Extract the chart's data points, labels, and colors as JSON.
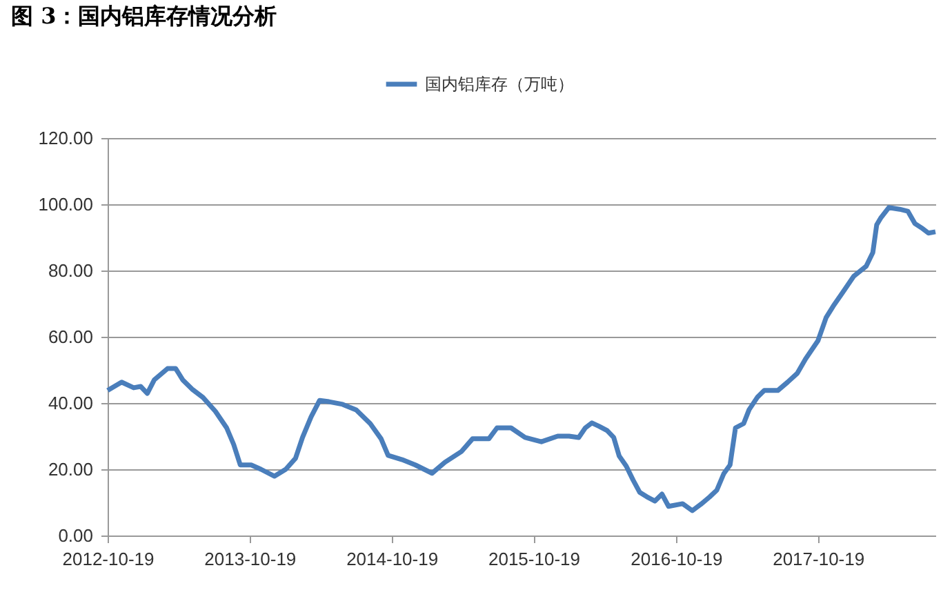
{
  "chart_data": {
    "type": "line",
    "title": "图 3：国内铝库存情况分析",
    "x": [
      "2012-10-19",
      "2012-11-24",
      "2012-12-25",
      "2013-01-12",
      "2013-01-29",
      "2013-02-16",
      "2013-03-22",
      "2013-04-12",
      "2013-04-30",
      "2013-05-24",
      "2013-06-21",
      "2013-07-23",
      "2013-08-21",
      "2013-09-08",
      "2013-09-25",
      "2013-10-23",
      "2013-11-17",
      "2013-12-22",
      "2014-01-20",
      "2014-02-14",
      "2014-03-04",
      "2014-03-26",
      "2014-04-17",
      "2014-05-11",
      "2014-06-15",
      "2014-07-20",
      "2014-08-25",
      "2014-09-22",
      "2014-10-10",
      "2014-11-15",
      "2014-12-19",
      "2015-01-31",
      "2015-03-05",
      "2015-04-17",
      "2015-05-15",
      "2015-06-26",
      "2015-07-17",
      "2015-08-22",
      "2015-09-27",
      "2015-11-08",
      "2015-12-20",
      "2016-01-18",
      "2016-02-12",
      "2016-02-29",
      "2016-03-17",
      "2016-04-04",
      "2016-04-25",
      "2016-05-12",
      "2016-05-26",
      "2016-06-13",
      "2016-07-01",
      "2016-07-18",
      "2016-08-05",
      "2016-08-26",
      "2016-09-13",
      "2016-09-30",
      "2016-11-05",
      "2016-11-30",
      "2016-12-24",
      "2017-01-14",
      "2017-02-01",
      "2017-02-19",
      "2017-03-07",
      "2017-03-21",
      "2017-04-11",
      "2017-04-25",
      "2017-05-16",
      "2017-06-03",
      "2017-07-08",
      "2017-08-02",
      "2017-08-27",
      "2017-09-17",
      "2017-10-19",
      "2017-11-09",
      "2017-11-27",
      "2017-12-21",
      "2018-01-19",
      "2018-02-20",
      "2018-03-09",
      "2018-03-19",
      "2018-03-29",
      "2018-04-19",
      "2018-05-17",
      "2018-06-07",
      "2018-06-25",
      "2018-07-12",
      "2018-07-30",
      "2018-08-17"
    ],
    "series": [
      {
        "name": "国内铝库存（万吨）",
        "color": "#4a7ebb",
        "values": [
          43.8,
          46.3,
          44.6,
          45,
          42.9,
          47,
          50.4,
          50.4,
          47,
          44.2,
          41.7,
          37.5,
          32.5,
          27.5,
          21.3,
          21.3,
          20,
          17.9,
          20,
          23.3,
          29.6,
          35.8,
          40.8,
          40.4,
          39.6,
          37.9,
          33.8,
          29.2,
          24.2,
          22.9,
          21.3,
          18.8,
          22.1,
          25.4,
          29.2,
          29.2,
          32.5,
          32.5,
          29.6,
          28.3,
          30,
          30,
          29.6,
          32.5,
          34,
          33,
          31.7,
          29.6,
          24,
          21,
          16.7,
          13,
          11.7,
          10.4,
          12.5,
          8.8,
          9.6,
          7.5,
          9.6,
          11.7,
          13.7,
          18.7,
          21.3,
          32.5,
          33.8,
          38,
          41.7,
          43.8,
          43.8,
          46.3,
          49,
          53.3,
          58.8,
          65.8,
          69.2,
          73.3,
          78.3,
          81.3,
          85.4,
          93.8,
          95.8,
          99,
          98.5,
          97.9,
          94.2,
          92.9,
          91.3,
          91.7
        ]
      }
    ],
    "xlim": [
      "2012-10-19",
      "2018-08-17"
    ],
    "xticks": [
      "2012-10-19",
      "2013-10-19",
      "2014-10-19",
      "2015-10-19",
      "2016-10-19",
      "2017-10-19"
    ],
    "ylim": [
      0,
      120
    ],
    "yticks": [
      {
        "value": 0,
        "label": "0.00"
      },
      {
        "value": 20,
        "label": "20.00"
      },
      {
        "value": 40,
        "label": "40.00"
      },
      {
        "value": 60,
        "label": "60.00"
      },
      {
        "value": 80,
        "label": "80.00"
      },
      {
        "value": 100,
        "label": "100.00"
      },
      {
        "value": 120,
        "label": "120.00"
      }
    ],
    "grid": "y",
    "legend": "top",
    "marker": "none",
    "line_style": "solid"
  }
}
